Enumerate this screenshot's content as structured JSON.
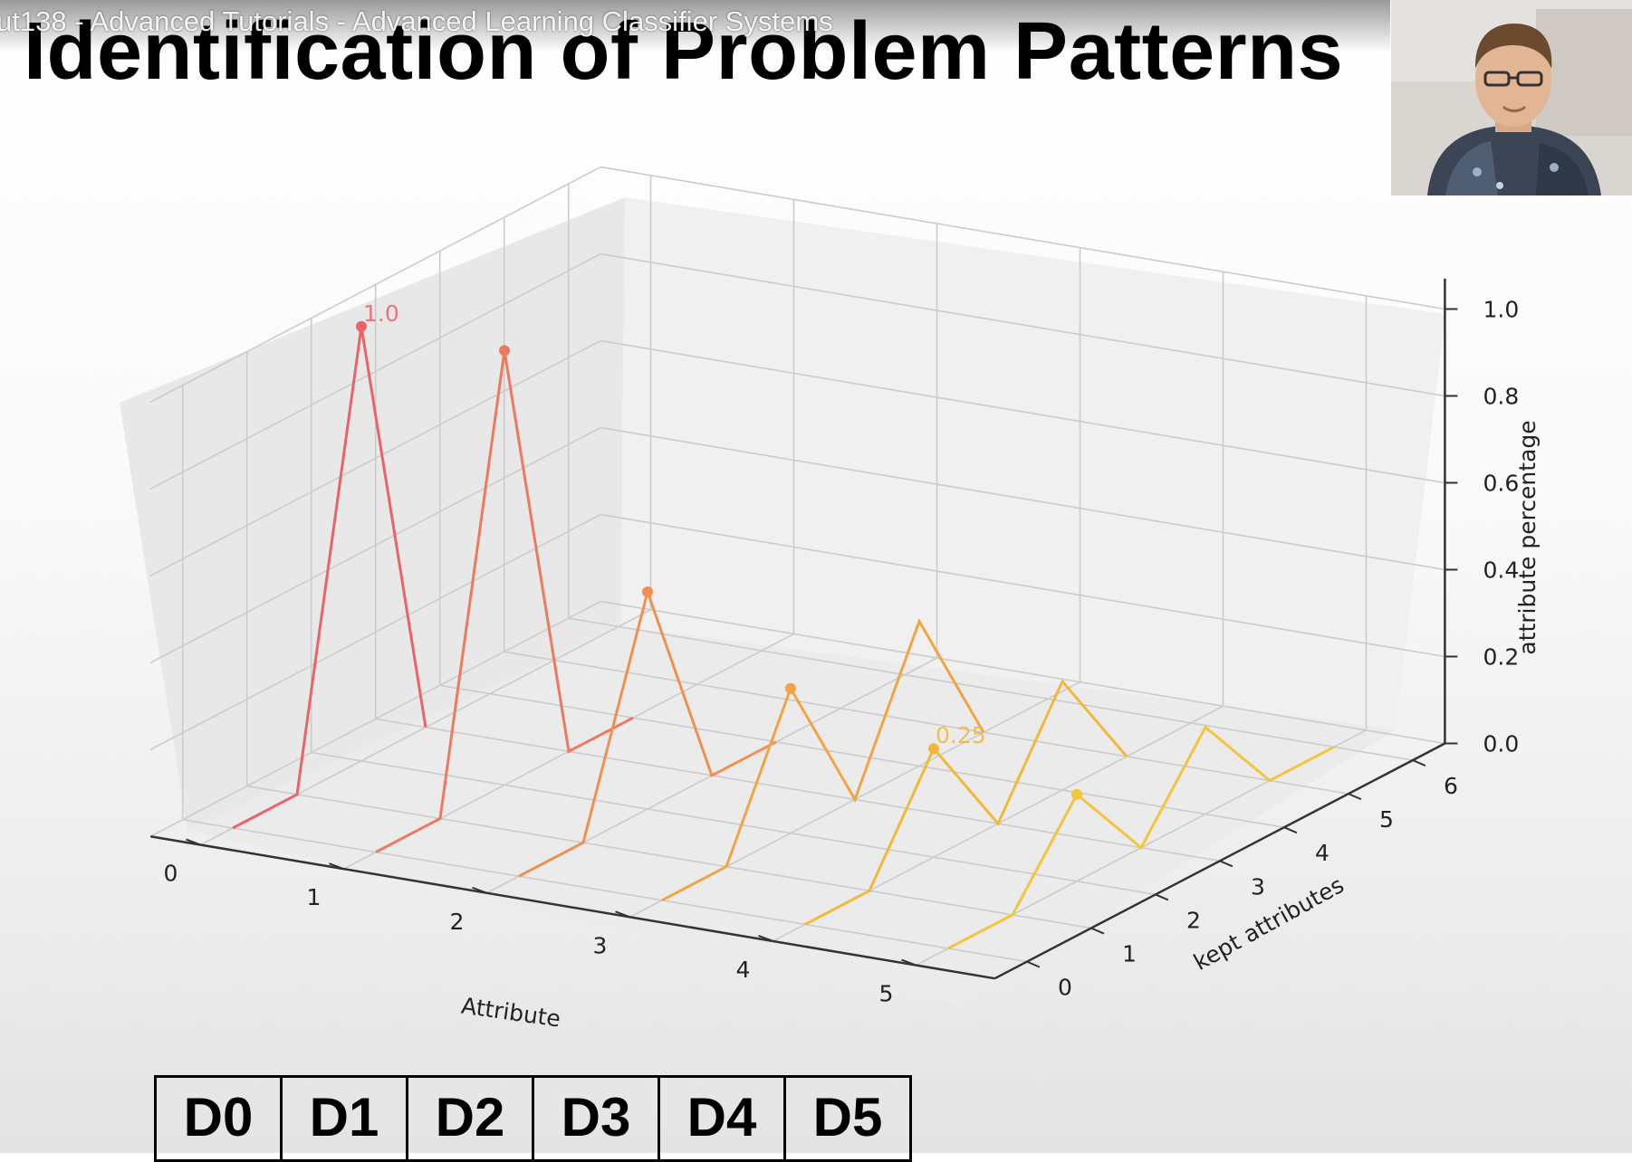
{
  "video": {
    "title": "ut138 - Advanced Tutorials - Advanced Learning Classifier Systems"
  },
  "slide": {
    "title": "Identification of Problem Patterns"
  },
  "table": {
    "cells": [
      "D0",
      "D1",
      "D2",
      "D3",
      "D4",
      "D5"
    ]
  },
  "chart_data": {
    "type": "line",
    "projection": "3d",
    "xlabel": "Attribute",
    "ylabel": "kept attributes",
    "zlabel": "attribute percentage",
    "x_ticks": [
      "0",
      "1",
      "2",
      "3",
      "4",
      "5"
    ],
    "y_ticks": [
      "0",
      "1",
      "2",
      "3",
      "4",
      "5",
      "6"
    ],
    "z_ticks": [
      "0.0",
      "0.2",
      "0.4",
      "0.6",
      "0.8",
      "1.0"
    ],
    "xlim": [
      0,
      5
    ],
    "ylim": [
      0,
      6
    ],
    "zlim": [
      0,
      1.0
    ],
    "grid": true,
    "colors": [
      "#e8636a",
      "#ec7a5e",
      "#ee9052",
      "#f0a444",
      "#f2b83a",
      "#f2c53a"
    ],
    "series": [
      {
        "x": 0,
        "y": [
          0,
          1,
          2,
          3
        ],
        "z": [
          0,
          0,
          1.0,
          0
        ],
        "marker_y": 2,
        "marker_z": 1.0,
        "label": "1.0"
      },
      {
        "x": 1,
        "y": [
          0,
          1,
          2,
          3,
          4
        ],
        "z": [
          0,
          0,
          1.0,
          0,
          0
        ],
        "marker_y": 2,
        "marker_z": 1.0,
        "label": ""
      },
      {
        "x": 2,
        "y": [
          0,
          1,
          2,
          3,
          4
        ],
        "z": [
          0,
          0,
          0.5,
          0,
          0
        ],
        "marker_y": 2,
        "marker_z": 0.5,
        "label": ""
      },
      {
        "x": 3,
        "y": [
          0,
          1,
          2,
          3,
          4,
          5
        ],
        "z": [
          0,
          0,
          0.333,
          0,
          0.333,
          0
        ],
        "marker_y": 2,
        "marker_z": 0.333,
        "label": ""
      },
      {
        "x": 4,
        "y": [
          0,
          1,
          2,
          3,
          4,
          5
        ],
        "z": [
          0,
          0,
          0.25,
          0,
          0.25,
          0
        ],
        "marker_y": 2,
        "marker_z": 0.25,
        "label": "0.25"
      },
      {
        "x": 5,
        "y": [
          0,
          1,
          2,
          3,
          4,
          5,
          6
        ],
        "z": [
          0,
          0,
          0.2,
          0,
          0.2,
          0,
          0
        ],
        "marker_y": 2,
        "marker_z": 0.2,
        "label": ""
      }
    ]
  }
}
